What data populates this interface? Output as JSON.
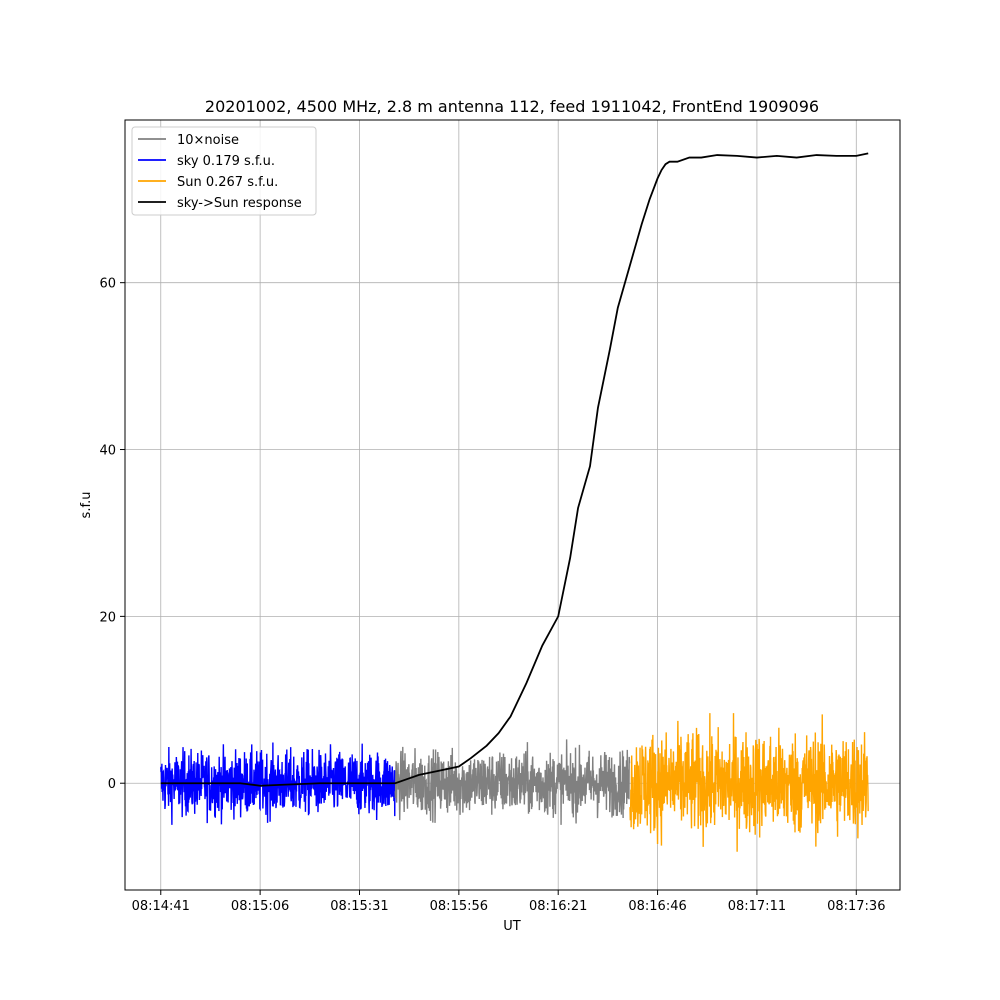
{
  "chart_data": {
    "type": "line",
    "title": "20201002, 4500 MHz, 2.8 m antenna 112, feed 1911042, FrontEnd 1909096",
    "xlabel": "UT",
    "ylabel": "s.f.u",
    "x_ticks": [
      "08:14:41",
      "08:15:06",
      "08:15:31",
      "08:15:56",
      "08:16:21",
      "08:16:46",
      "08:17:11",
      "08:17:36"
    ],
    "x_tick_seconds": [
      0,
      25,
      50,
      75,
      100,
      125,
      150,
      175
    ],
    "x_range_seconds": [
      -9,
      186
    ],
    "y_ticks": [
      0,
      20,
      40,
      60
    ],
    "ylim": [
      -12.8,
      79.5
    ],
    "grid": true,
    "legend_position": "upper-left",
    "colors": {
      "noise": "#808080",
      "sky": "#0000ff",
      "sun": "#ffa500",
      "response": "#000000"
    },
    "series": [
      {
        "name": "10×noise",
        "x_range_seconds": [
          59,
          118
        ],
        "amplitude_sfu": 5
      },
      {
        "name": "sky 0.179 s.f.u.",
        "x_range_seconds": [
          0,
          59
        ],
        "amplitude_sfu": 5
      },
      {
        "name": "Sun 0.267 s.f.u.",
        "x_range_seconds": [
          118,
          178
        ],
        "amplitude_sfu": 8
      },
      {
        "name": "sky->Sun response",
        "x": [
          0,
          10,
          20,
          25,
          30,
          40,
          50,
          59,
          62,
          65,
          70,
          75,
          78,
          82,
          85,
          88,
          92,
          96,
          100,
          103,
          105,
          108,
          110,
          113,
          115,
          118,
          121,
          123,
          125,
          126,
          127,
          128,
          130,
          133,
          136,
          140,
          145,
          150,
          155,
          160,
          165,
          170,
          175,
          178
        ],
        "y": [
          0,
          0,
          0,
          -0.3,
          -0.2,
          0,
          0,
          0,
          0.5,
          1.0,
          1.5,
          2.0,
          3.0,
          4.5,
          6.0,
          8.0,
          12.0,
          16.5,
          20.0,
          27.0,
          33.0,
          38.0,
          45.0,
          52.0,
          57.0,
          62.0,
          67.0,
          70.0,
          72.5,
          73.5,
          74.2,
          74.5,
          74.5,
          75.0,
          75.0,
          75.3,
          75.2,
          75.0,
          75.2,
          75.0,
          75.3,
          75.2,
          75.2,
          75.5
        ]
      }
    ]
  }
}
